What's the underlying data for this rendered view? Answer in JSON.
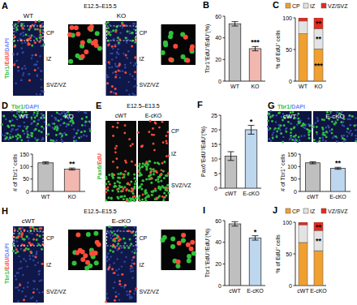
{
  "image_panels": [
    {
      "title": "A",
      "stain": "Tbr1/EdU/DAPI",
      "time": "E12.5–E15.5",
      "groups": [
        "WT",
        "KO"
      ],
      "zones": [
        "CP",
        "IZ",
        "SVZ/VZ"
      ]
    },
    {
      "title": "D",
      "stain": "Tbr1/DAPI",
      "groups": [
        "WT",
        "KO"
      ]
    },
    {
      "title": "E",
      "stain": "Pax6/EdU",
      "time": "E12.5–E13.5",
      "groups": [
        "cWT",
        "E-cKO"
      ],
      "zones": [
        "CP",
        "IZ",
        "SVZ/VZ"
      ]
    },
    {
      "title": "G",
      "stain": "Tbr1/DAPI",
      "groups": [
        "cWT",
        "E-cKO"
      ]
    },
    {
      "title": "H",
      "stain": "Tbr1/EdU/DAPI",
      "time": "E12.5–E15.5",
      "groups": [
        "cWT",
        "E-cKO"
      ],
      "zones": [
        "CP",
        "IZ",
        "SVZ/VZ"
      ]
    }
  ],
  "chart_data": [
    {
      "type": "bar",
      "title": "B",
      "y_label": "Tbr1⁺EdU⁺/EdU⁺(%)",
      "categories": [
        "WT",
        "KO"
      ],
      "values": [
        53,
        30
      ],
      "errors": [
        2,
        2
      ],
      "colors": [
        "#bfbfbf",
        "#f2b8b0"
      ],
      "ylim": [
        0,
        60
      ],
      "yticks": [
        0,
        20,
        40,
        60
      ],
      "annotations": [
        {
          "text": "***",
          "category": 1
        }
      ]
    },
    {
      "type": "bar",
      "title": "C",
      "y_label": "% of EdU⁺ cells",
      "stacked": true,
      "categories": [
        "WT",
        "KO"
      ],
      "series": [
        {
          "name": "CP",
          "color": "#f0a030",
          "values": [
            75,
            51
          ]
        },
        {
          "name": "IZ",
          "color": "#e3e3e3",
          "values": [
            20,
            32
          ]
        },
        {
          "name": "VZ/SVZ",
          "color": "#e8291c",
          "values": [
            5,
            17
          ]
        }
      ],
      "ylim": [
        0,
        100
      ],
      "yticks": [
        0,
        50,
        100
      ],
      "annotations": [
        {
          "text": "***",
          "series": 0,
          "category": 1
        },
        {
          "text": "**",
          "series": 1,
          "category": 1
        },
        {
          "text": "**",
          "series": 2,
          "category": 1
        }
      ]
    },
    {
      "type": "bar",
      "y_label": "# of Tbr1⁺ cells",
      "categories": [
        "WT",
        "KO"
      ],
      "values": [
        115,
        90
      ],
      "errors": [
        4,
        4
      ],
      "colors": [
        "#bfbfbf",
        "#f2b8b0"
      ],
      "ylim": [
        0,
        150
      ],
      "yticks": [
        0,
        50,
        100,
        150
      ],
      "annotations": [
        {
          "text": "**",
          "category": 1
        }
      ]
    },
    {
      "type": "bar",
      "title": "F",
      "y_label": "Pax6⁺EdU⁺/EdU⁺(%)",
      "categories": [
        "cWT",
        "E-cKO"
      ],
      "values": [
        11,
        20
      ],
      "errors": [
        1.5,
        1.5
      ],
      "colors": [
        "#bfbfbf",
        "#bdd7ee"
      ],
      "ylim": [
        0,
        25
      ],
      "yticks": [
        0,
        5,
        10,
        15,
        20,
        25
      ],
      "annotations": [
        {
          "text": "*",
          "category": 1
        }
      ]
    },
    {
      "type": "bar",
      "y_label": "# of Tbr1⁺ cells",
      "categories": [
        "cWT",
        "E-cKO"
      ],
      "values": [
        115,
        93
      ],
      "errors": [
        4,
        4
      ],
      "colors": [
        "#bfbfbf",
        "#bdd7ee"
      ],
      "ylim": [
        0,
        150
      ],
      "yticks": [
        0,
        50,
        100,
        150
      ],
      "annotations": [
        {
          "text": "**",
          "category": 1
        }
      ]
    },
    {
      "type": "bar",
      "title": "I",
      "y_label": "Tbr1⁺EdU⁺/EdU⁺(%)",
      "categories": [
        "cWT",
        "E-cKO"
      ],
      "values": [
        57,
        44
      ],
      "errors": [
        2,
        2
      ],
      "colors": [
        "#bfbfbf",
        "#bdd7ee"
      ],
      "ylim": [
        0,
        60
      ],
      "yticks": [
        0,
        20,
        40,
        60
      ],
      "annotations": [
        {
          "text": "*",
          "category": 1
        }
      ]
    },
    {
      "type": "bar",
      "title": "J",
      "y_label": "% of EdU⁺ cells",
      "stacked": true,
      "categories": [
        "cWT",
        "E-cKO"
      ],
      "series": [
        {
          "name": "CP",
          "color": "#f0a030",
          "values": [
            68,
            55
          ]
        },
        {
          "name": "IZ",
          "color": "#e3e3e3",
          "values": [
            28,
            32
          ]
        },
        {
          "name": "VZ/SVZ",
          "color": "#e8291c",
          "values": [
            4,
            13
          ]
        }
      ],
      "ylim": [
        0,
        100
      ],
      "yticks": [
        0,
        50,
        100
      ],
      "annotations": [
        {
          "text": "**",
          "series": 1,
          "category": 1
        },
        {
          "text": "**",
          "series": 2,
          "category": 1
        }
      ]
    }
  ]
}
